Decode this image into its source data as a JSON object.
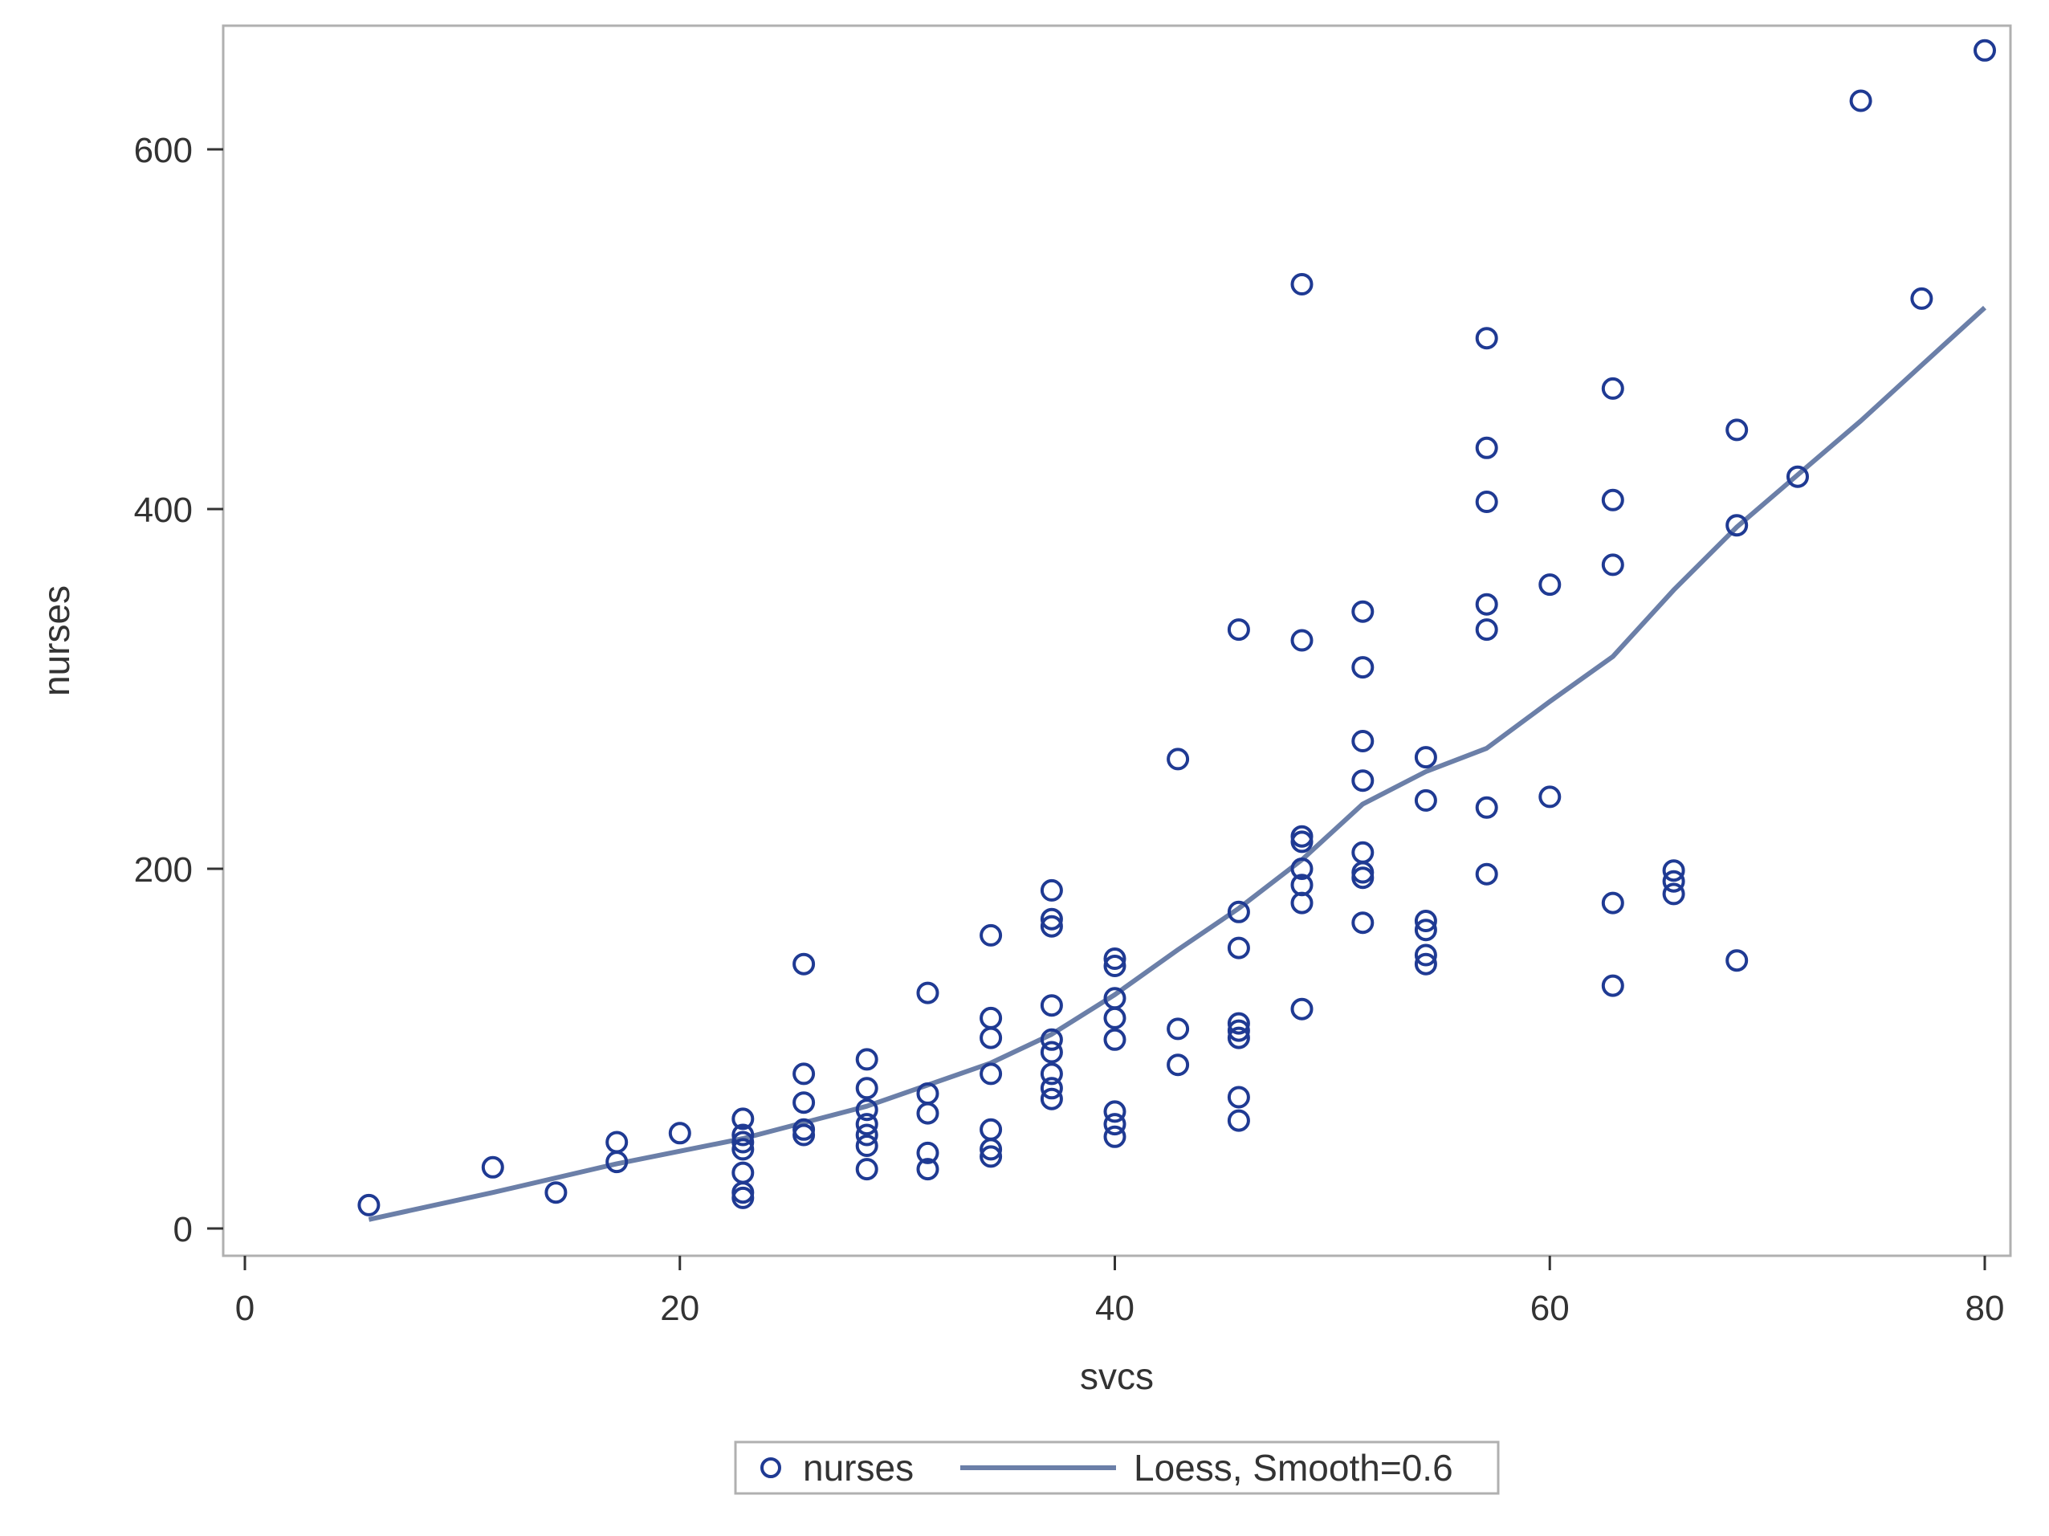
{
  "chart_data": {
    "type": "scatter",
    "title": "",
    "xlabel": "svcs",
    "ylabel": "nurses",
    "xlim": [
      0,
      80
    ],
    "ylim": [
      0,
      660
    ],
    "x_ticks": [
      0,
      20,
      40,
      60,
      80
    ],
    "y_ticks": [
      0,
      200,
      400,
      600
    ],
    "grid": false,
    "legend_position": "bottom-center",
    "colors": {
      "points": "#1f3a93",
      "loess": "#6b7fa8",
      "frame": "#b0b0b0"
    },
    "series": [
      {
        "name": "nurses",
        "kind": "scatter",
        "marker": "open-circle",
        "points": [
          [
            5.7,
            13
          ],
          [
            11.4,
            34
          ],
          [
            14.3,
            20
          ],
          [
            17.1,
            48
          ],
          [
            17.1,
            37
          ],
          [
            20,
            53
          ],
          [
            22.9,
            61
          ],
          [
            22.9,
            52
          ],
          [
            22.9,
            48
          ],
          [
            22.9,
            44
          ],
          [
            22.9,
            31
          ],
          [
            22.9,
            20
          ],
          [
            22.9,
            17
          ],
          [
            25.7,
            147
          ],
          [
            25.7,
            86
          ],
          [
            25.7,
            70
          ],
          [
            25.7,
            55
          ],
          [
            25.7,
            52
          ],
          [
            28.6,
            94
          ],
          [
            28.6,
            78
          ],
          [
            28.6,
            66
          ],
          [
            28.6,
            58
          ],
          [
            28.6,
            52
          ],
          [
            28.6,
            46
          ],
          [
            28.6,
            33
          ],
          [
            31.4,
            131
          ],
          [
            31.4,
            75
          ],
          [
            31.4,
            64
          ],
          [
            31.4,
            42
          ],
          [
            31.4,
            33
          ],
          [
            34.3,
            163
          ],
          [
            34.3,
            117
          ],
          [
            34.3,
            106
          ],
          [
            34.3,
            86
          ],
          [
            34.3,
            55
          ],
          [
            34.3,
            44
          ],
          [
            34.3,
            40
          ],
          [
            37.1,
            188
          ],
          [
            37.1,
            172
          ],
          [
            37.1,
            168
          ],
          [
            37.1,
            124
          ],
          [
            37.1,
            105
          ],
          [
            37.1,
            98
          ],
          [
            37.1,
            86
          ],
          [
            37.1,
            78
          ],
          [
            37.1,
            72
          ],
          [
            40,
            150
          ],
          [
            40,
            146
          ],
          [
            40,
            128
          ],
          [
            40,
            117
          ],
          [
            40,
            105
          ],
          [
            40,
            65
          ],
          [
            40,
            58
          ],
          [
            40,
            51
          ],
          [
            42.9,
            261
          ],
          [
            42.9,
            111
          ],
          [
            42.9,
            91
          ],
          [
            45.7,
            333
          ],
          [
            45.7,
            176
          ],
          [
            45.7,
            156
          ],
          [
            45.7,
            114
          ],
          [
            45.7,
            110
          ],
          [
            45.7,
            106
          ],
          [
            45.7,
            73
          ],
          [
            45.7,
            60
          ],
          [
            48.6,
            525
          ],
          [
            48.6,
            327
          ],
          [
            48.6,
            218
          ],
          [
            48.6,
            215
          ],
          [
            48.6,
            200
          ],
          [
            48.6,
            191
          ],
          [
            48.6,
            181
          ],
          [
            48.6,
            122
          ],
          [
            51.4,
            343
          ],
          [
            51.4,
            312
          ],
          [
            51.4,
            271
          ],
          [
            51.4,
            249
          ],
          [
            51.4,
            209
          ],
          [
            51.4,
            198
          ],
          [
            51.4,
            195
          ],
          [
            51.4,
            170
          ],
          [
            54.3,
            262
          ],
          [
            54.3,
            238
          ],
          [
            54.3,
            171
          ],
          [
            54.3,
            166
          ],
          [
            54.3,
            152
          ],
          [
            54.3,
            147
          ],
          [
            57.1,
            495
          ],
          [
            57.1,
            434
          ],
          [
            57.1,
            404
          ],
          [
            57.1,
            347
          ],
          [
            57.1,
            333
          ],
          [
            57.1,
            234
          ],
          [
            57.1,
            197
          ],
          [
            60,
            358
          ],
          [
            60,
            240
          ],
          [
            62.9,
            467
          ],
          [
            62.9,
            405
          ],
          [
            62.9,
            369
          ],
          [
            62.9,
            181
          ],
          [
            62.9,
            135
          ],
          [
            65.7,
            199
          ],
          [
            65.7,
            193
          ],
          [
            65.7,
            186
          ],
          [
            68.6,
            444
          ],
          [
            68.6,
            391
          ],
          [
            68.6,
            149
          ],
          [
            71.4,
            418
          ],
          [
            74.3,
            627
          ],
          [
            77.1,
            517
          ],
          [
            80,
            655
          ]
        ]
      },
      {
        "name": "Loess, Smooth=0.6",
        "kind": "line",
        "x": [
          5.7,
          11.4,
          17.1,
          22.9,
          28.6,
          34.3,
          37.1,
          40,
          42.9,
          45.7,
          48.6,
          51.4,
          54.3,
          57.1,
          60,
          62.9,
          65.7,
          68.6,
          71.4,
          74.3,
          77.1,
          80
        ],
        "y": [
          5,
          20,
          36,
          50,
          68,
          92,
          108,
          130,
          155,
          178,
          205,
          236,
          254,
          267,
          293,
          318,
          355,
          390,
          419,
          449,
          480,
          512
        ]
      }
    ]
  }
}
